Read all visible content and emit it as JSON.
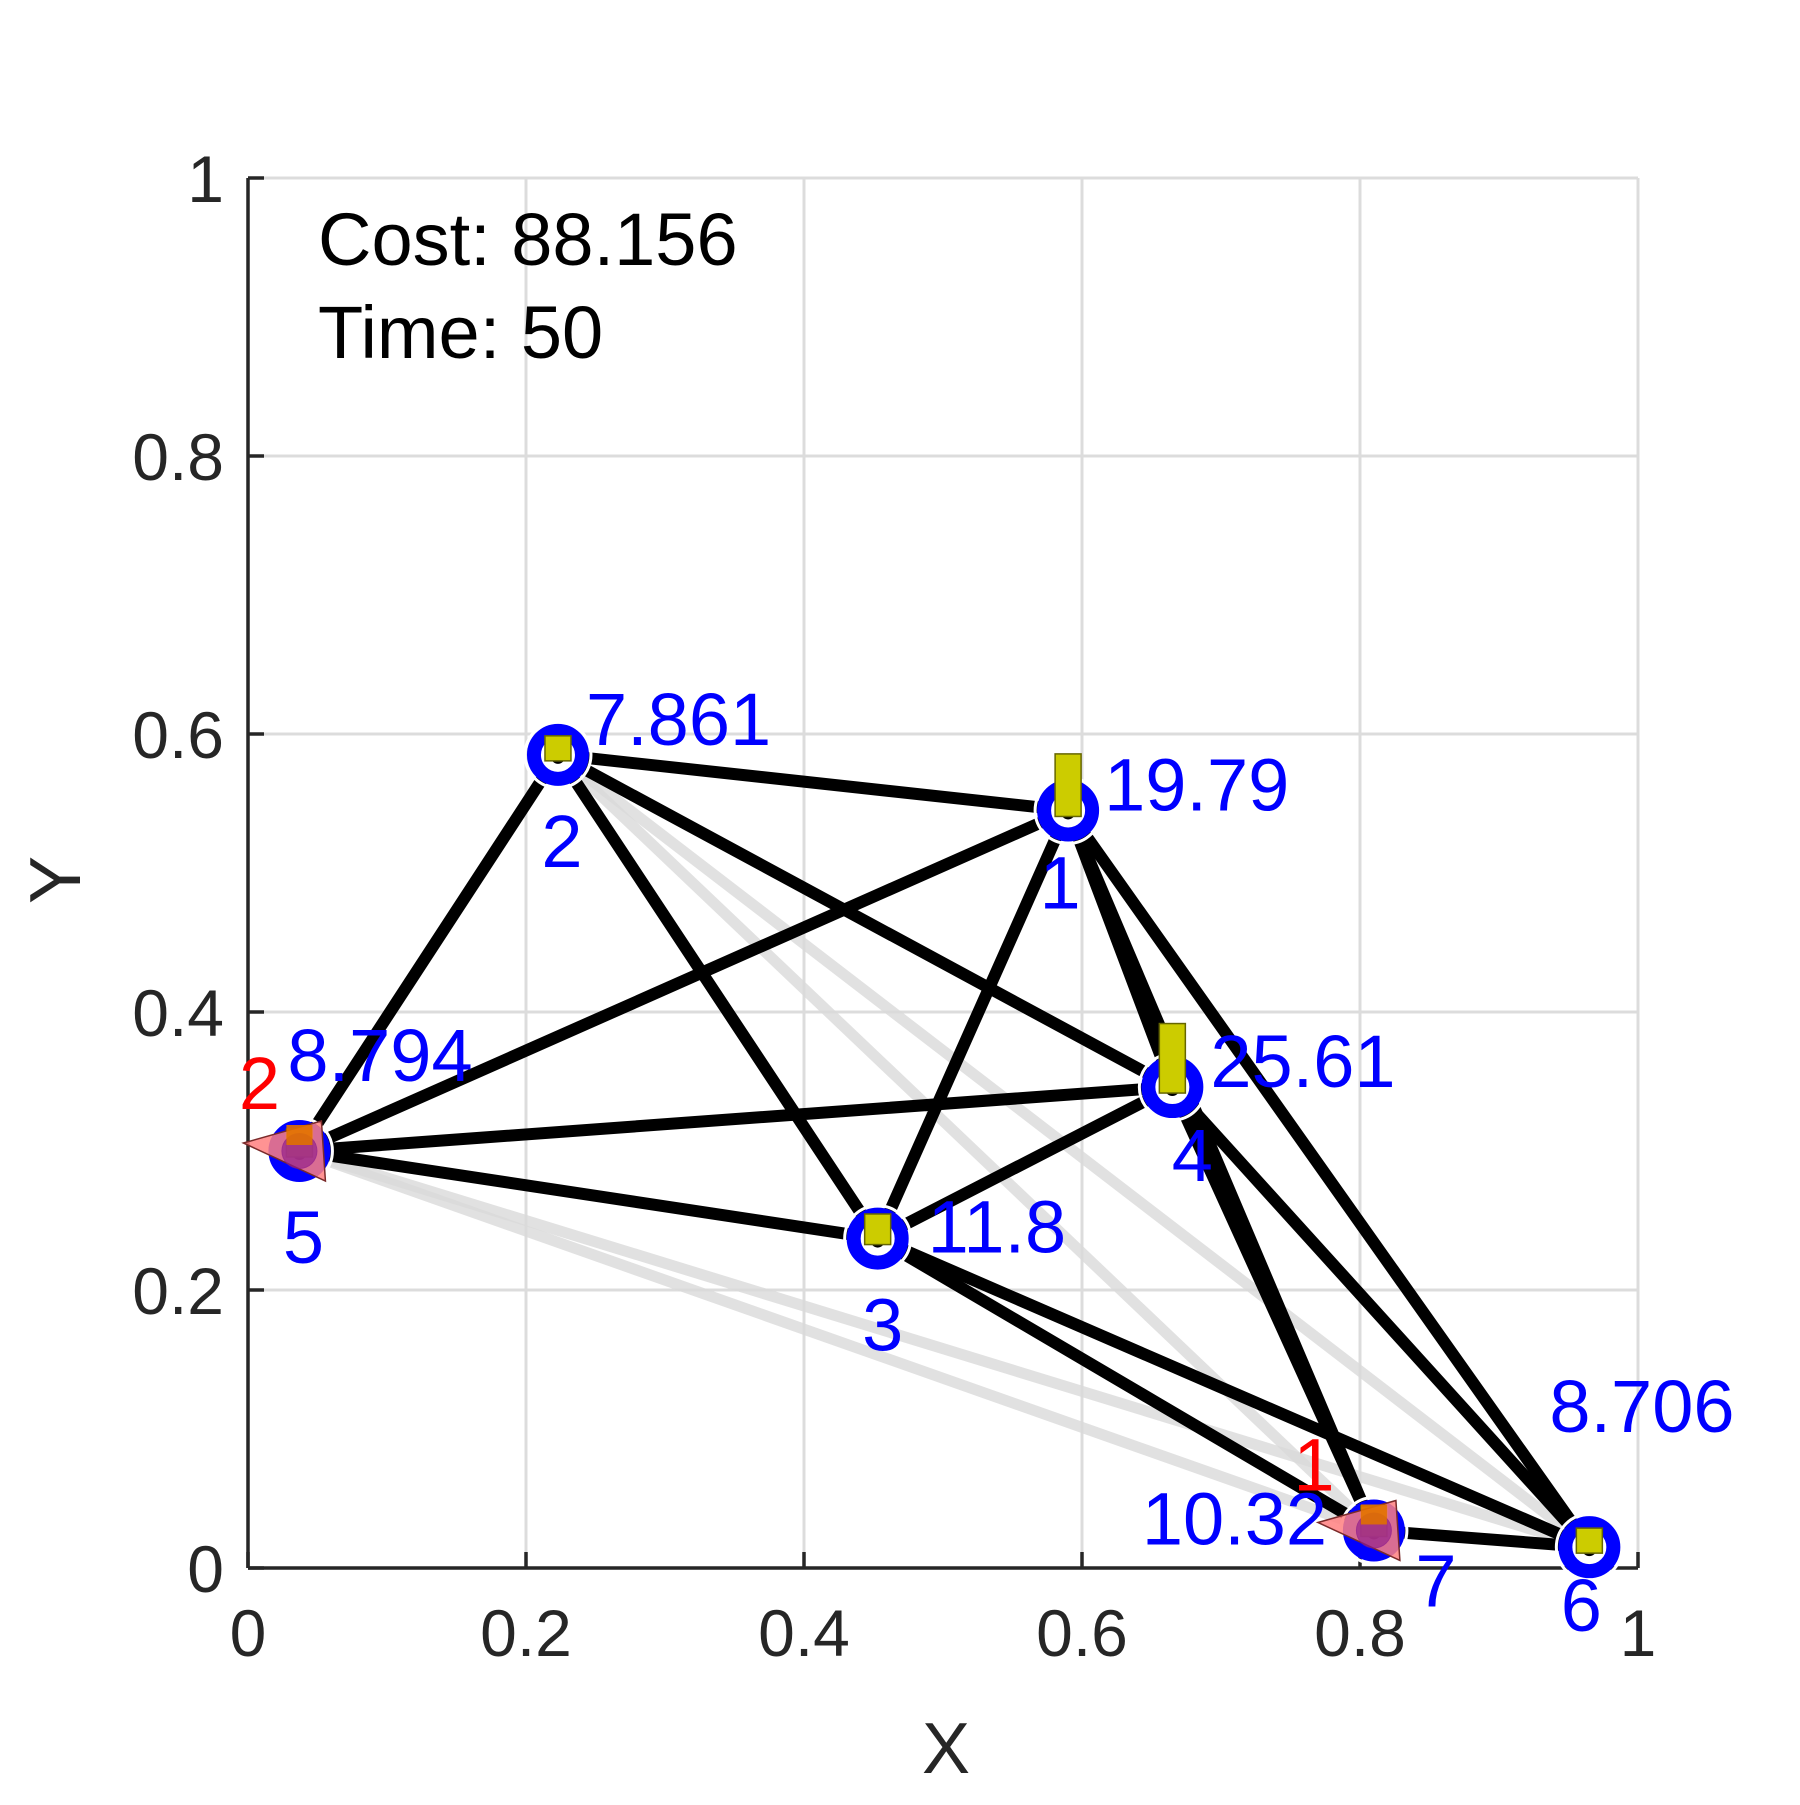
{
  "chart_data": {
    "type": "scatter",
    "title": "",
    "xlabel": "X",
    "ylabel": "Y",
    "xlim": [
      0,
      1
    ],
    "ylim": [
      0,
      1
    ],
    "xticks": [
      "0",
      "0.2",
      "0.4",
      "0.6",
      "0.8",
      "1"
    ],
    "yticks": [
      "0",
      "0.2",
      "0.4",
      "0.6",
      "0.8",
      "1"
    ],
    "grid": true,
    "info": {
      "cost": "Cost: 88.156",
      "time": "Time: 50"
    },
    "nodes": [
      {
        "id": "1",
        "x": 0.59,
        "y": 0.545,
        "value": "19.79",
        "bar_height": 0.045
      },
      {
        "id": "2",
        "x": 0.223,
        "y": 0.585,
        "value": "7.861",
        "bar_height": 0.018
      },
      {
        "id": "3",
        "x": 0.453,
        "y": 0.237,
        "value": "11.8",
        "bar_height": 0.022
      },
      {
        "id": "4",
        "x": 0.665,
        "y": 0.346,
        "value": "25.61",
        "bar_height": 0.05
      },
      {
        "id": "5",
        "x": 0.037,
        "y": 0.3,
        "value": "8.794",
        "bar_height": 0.02
      },
      {
        "id": "6",
        "x": 0.965,
        "y": 0.015,
        "value": "8.706",
        "bar_height": 0.018
      },
      {
        "id": "7",
        "x": 0.81,
        "y": 0.027,
        "value": "10.32",
        "bar_height": 0.022
      }
    ],
    "edges": [
      {
        "from": "2",
        "to": "1",
        "weight": "strong"
      },
      {
        "from": "2",
        "to": "5",
        "weight": "strong"
      },
      {
        "from": "2",
        "to": "3",
        "weight": "strong"
      },
      {
        "from": "2",
        "to": "4",
        "weight": "strong"
      },
      {
        "from": "5",
        "to": "1",
        "weight": "strong"
      },
      {
        "from": "5",
        "to": "4",
        "weight": "strong"
      },
      {
        "from": "5",
        "to": "3",
        "weight": "strong"
      },
      {
        "from": "3",
        "to": "1",
        "weight": "strong"
      },
      {
        "from": "3",
        "to": "4",
        "weight": "strong"
      },
      {
        "from": "3",
        "to": "7",
        "weight": "strong"
      },
      {
        "from": "3",
        "to": "6",
        "weight": "strong"
      },
      {
        "from": "1",
        "to": "4",
        "weight": "strong"
      },
      {
        "from": "1",
        "to": "6",
        "weight": "strong"
      },
      {
        "from": "1",
        "to": "7",
        "weight": "strong"
      },
      {
        "from": "4",
        "to": "7",
        "weight": "strong"
      },
      {
        "from": "4",
        "to": "6",
        "weight": "strong"
      },
      {
        "from": "7",
        "to": "6",
        "weight": "strong"
      },
      {
        "from": "2",
        "to": "7",
        "weight": "faint"
      },
      {
        "from": "2",
        "to": "6",
        "weight": "faint"
      },
      {
        "from": "5",
        "to": "7",
        "weight": "faint"
      },
      {
        "from": "5",
        "to": "6",
        "weight": "faint"
      }
    ],
    "robots": [
      {
        "id": "1",
        "x": 0.81,
        "y": 0.027,
        "heading": "left"
      },
      {
        "id": "2",
        "x": 0.037,
        "y": 0.3,
        "heading": "left"
      }
    ],
    "colors": {
      "edge": "#000000",
      "edge_faint": "#d9d9d9",
      "node": "#0000ff",
      "node_label": "#0000ff",
      "bar_fill": "#cccc00",
      "robot_body": "#ff8080",
      "robot_marker": "#8b1a8b",
      "robot_label": "#ff0000",
      "grid": "#dcdcdc",
      "axis": "#262626"
    }
  }
}
